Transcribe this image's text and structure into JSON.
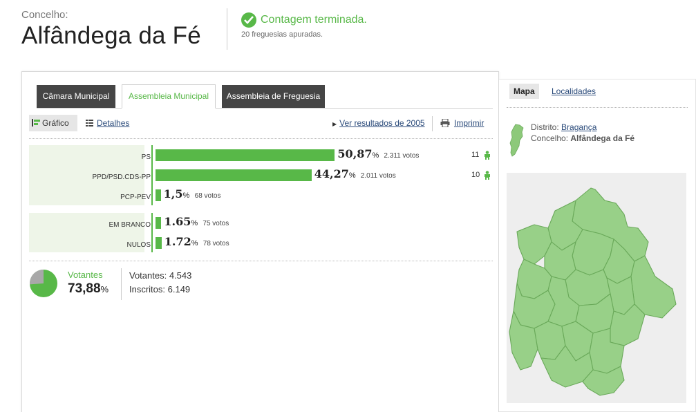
{
  "header": {
    "label": "Concelho:",
    "title": "Alfândega da Fé",
    "status_title": "Contagem terminada.",
    "status_sub": "20 freguesias apuradas.",
    "status_icon": "check-circle-icon",
    "accent_color": "#58b848"
  },
  "tabs": [
    {
      "label": "Câmara Municipal",
      "active": false
    },
    {
      "label": "Assembleia Municipal",
      "active": true
    },
    {
      "label": "Assembleia de Freguesia",
      "active": false
    }
  ],
  "toolbar": {
    "grafico": "Gráfico",
    "detalhes": "Detalhes",
    "ver_resultados": "Ver resultados de 2005",
    "imprimir": "Imprimir"
  },
  "results": {
    "pct_unit": "%",
    "parties": [
      {
        "name": "PS",
        "pct": "50,87",
        "votes": "2.311 votos",
        "seats": "11",
        "bar_pct": 50.87
      },
      {
        "name": "PPD/PSD.CDS-PP",
        "pct": "44,27",
        "votes": "2.011 votos",
        "seats": "10",
        "bar_pct": 44.27
      },
      {
        "name": "PCP-PEV",
        "pct": "1,5",
        "votes": "68 votos",
        "seats": "",
        "bar_pct": 1.5
      }
    ],
    "others": [
      {
        "name": "EM BRANCO",
        "pct": "1.65",
        "votes": "75 votos",
        "bar_pct": 1.65
      },
      {
        "name": "NULOS",
        "pct": "1.72",
        "votes": "78 votos",
        "bar_pct": 1.72
      }
    ]
  },
  "turnout": {
    "label": "Votantes",
    "pct": "73,88",
    "pct_unit": "%",
    "pct_value": 73.88,
    "votantes": "Votantes: 4.543",
    "inscritos": "Inscritos: 6.149"
  },
  "sidebar": {
    "tab_mapa": "Mapa",
    "tab_localidades": "Localidades",
    "distrito_label": "Distrito:",
    "distrito_value": "Bragança",
    "concelho_label": "Concelho:",
    "concelho_value": "Alfândega da Fé"
  }
}
